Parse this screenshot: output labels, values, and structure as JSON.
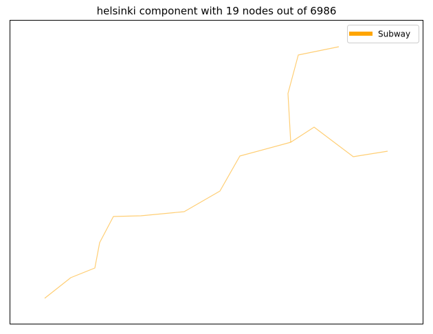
{
  "title": "helsinki component with 19 nodes out of 6986",
  "legend": {
    "label": "Subway",
    "color": "#ffa500",
    "placement": "top-right"
  },
  "network": {
    "line_color": "#ffa500",
    "line_opacity": 0.55,
    "axes_visible": false,
    "grid": false
  }
}
